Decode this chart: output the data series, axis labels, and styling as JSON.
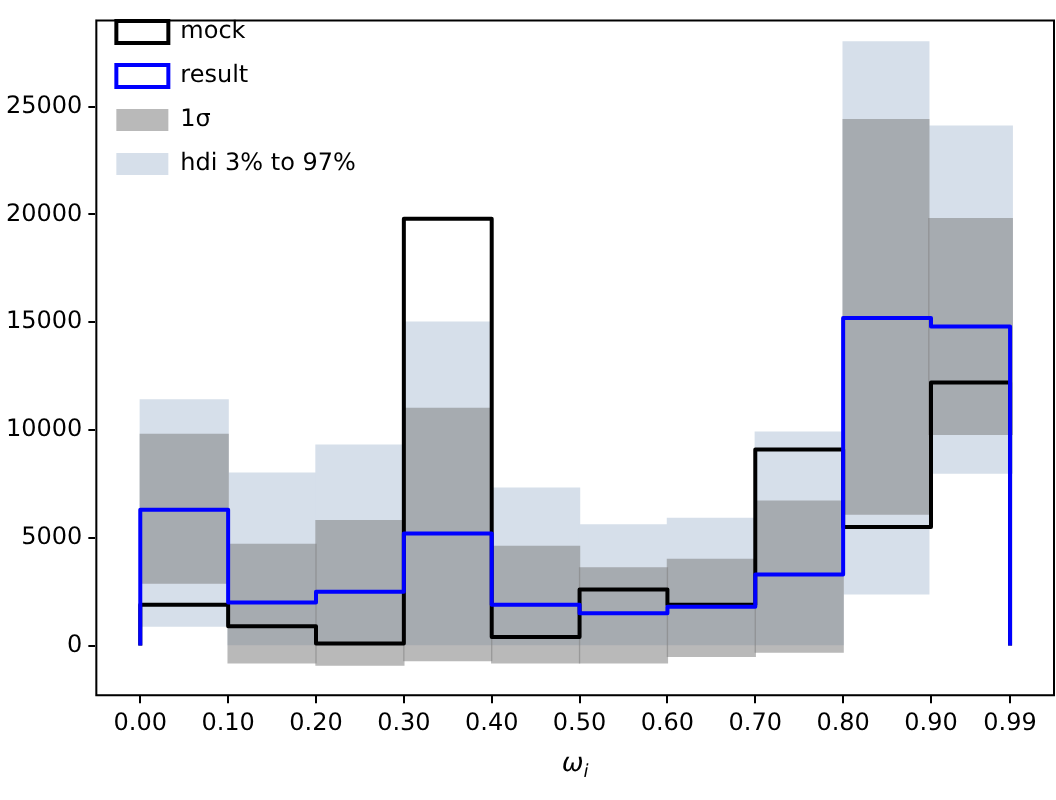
{
  "chart_data": {
    "type": "step",
    "xlabel": "ω$_{i}$",
    "xlim": [
      -0.05,
      1.04
    ],
    "xticks": [
      {
        "value": 0,
        "label": "0.00"
      },
      {
        "value": 0.1,
        "label": "0.10"
      },
      {
        "value": 0.2,
        "label": "0.20"
      },
      {
        "value": 0.3,
        "label": "0.30"
      },
      {
        "value": 0.4,
        "label": "0.40"
      },
      {
        "value": 0.5,
        "label": "0.50"
      },
      {
        "value": 0.6,
        "label": "0.60"
      },
      {
        "value": 0.7,
        "label": "0.70"
      },
      {
        "value": 0.8,
        "label": "0.80"
      },
      {
        "value": 0.9,
        "label": "0.90"
      },
      0.99
    ],
    "ylim": [
      -2300,
      29000
    ],
    "yticks": [
      0,
      5000,
      10000,
      15000,
      20000,
      25000
    ],
    "legend": "top left",
    "series": [
      {
        "name": "mock",
        "color": "#000000",
        "x": [
          0,
          0,
          0.1,
          0.2,
          0.3,
          0.4,
          0.5,
          0.6,
          0.7,
          0.8,
          0.9,
          0.99,
          0.99
        ],
        "values": [
          0,
          1900,
          900,
          100,
          19800,
          400,
          2600,
          1900,
          9100,
          5500,
          12200,
          12200,
          0
        ]
      },
      {
        "name": "result",
        "color": "#0000ff",
        "x": [
          0,
          0,
          0.1,
          0.2,
          0.3,
          0.4,
          0.5,
          0.6,
          0.7,
          0.8,
          0.9,
          0.99,
          0.99
        ],
        "values": [
          0,
          6300,
          2000,
          2500,
          5200,
          1900,
          1500,
          1800,
          3300,
          15200,
          14800,
          14800,
          0
        ]
      },
      {
        "name": "1σ",
        "type": "bar",
        "color": "#808080",
        "x": [
          0.05,
          0.15,
          0.25,
          0.35,
          0.45,
          0.55,
          0.65,
          0.75,
          0.85,
          0.945
        ],
        "base": [
          2900,
          -800,
          -900,
          -700,
          -800,
          -800,
          -500,
          -300,
          6100,
          9800
        ],
        "values": [
          6900,
          5500,
          6700,
          11700,
          5400,
          4400,
          4500,
          7000,
          18300,
          10000
        ]
      },
      {
        "name": "hdi 3% to 97%",
        "type": "bar",
        "color": "#d6dfea",
        "x": [
          0.05,
          0.15,
          0.25,
          0.35,
          0.45,
          0.55,
          0.65,
          0.75,
          0.85,
          0.945
        ],
        "base": [
          900,
          0,
          0,
          0,
          0,
          0,
          0,
          0,
          2400,
          8000
        ],
        "values": [
          10500,
          8000,
          9300,
          15000,
          7300,
          5600,
          5900,
          9900,
          25600,
          16100
        ]
      }
    ]
  }
}
